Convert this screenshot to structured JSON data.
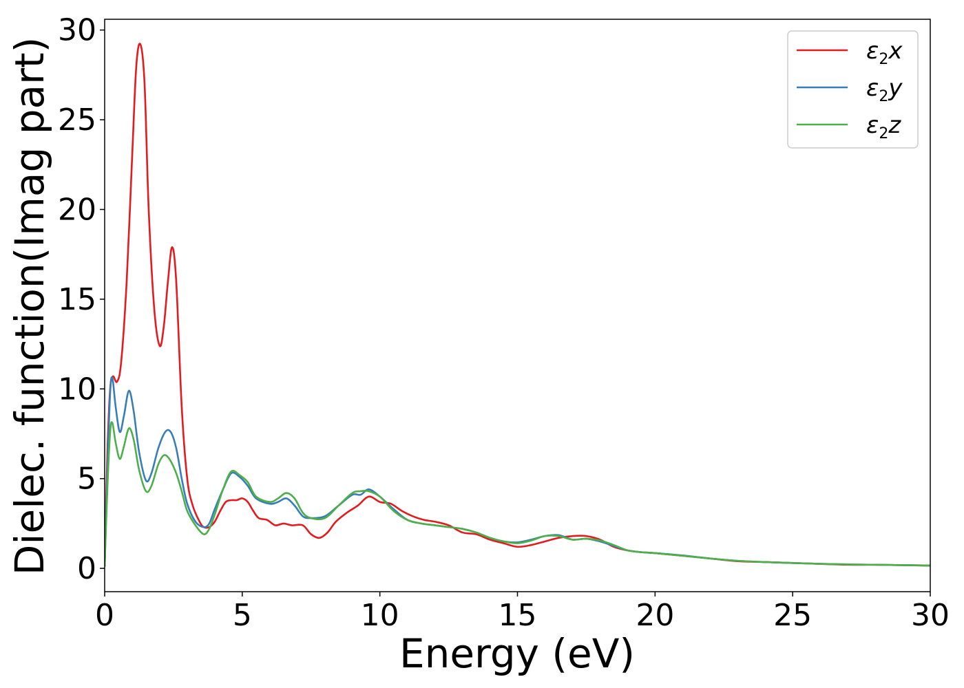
{
  "chart_data": {
    "type": "line",
    "xlabel": "Energy (eV)",
    "ylabel": "Dielec. function(Imag part)",
    "xlim": [
      0,
      30
    ],
    "ylim": [
      -1.3,
      30.6
    ],
    "xticks": [
      0,
      5,
      10,
      15,
      20,
      25,
      30
    ],
    "yticks": [
      0,
      5,
      10,
      15,
      20,
      25,
      30
    ],
    "grid": false,
    "legend_position": "top-right",
    "series": [
      {
        "name": "ε₂x",
        "legend_base": "ε",
        "legend_sub": "2",
        "legend_var": "x",
        "color": "#e41a1c",
        "points": [
          [
            0,
            0.1
          ],
          [
            0.1,
            6.5
          ],
          [
            0.2,
            10.0
          ],
          [
            0.3,
            10.7
          ],
          [
            0.45,
            10.4
          ],
          [
            0.6,
            11.5
          ],
          [
            0.8,
            16
          ],
          [
            1.0,
            23
          ],
          [
            1.15,
            28
          ],
          [
            1.3,
            29.2
          ],
          [
            1.45,
            27
          ],
          [
            1.6,
            20
          ],
          [
            1.8,
            14.5
          ],
          [
            2.0,
            12.4
          ],
          [
            2.15,
            13.5
          ],
          [
            2.3,
            16
          ],
          [
            2.45,
            17.9
          ],
          [
            2.6,
            16
          ],
          [
            2.8,
            9
          ],
          [
            3.0,
            5
          ],
          [
            3.2,
            3.5
          ],
          [
            3.45,
            2.6
          ],
          [
            3.6,
            2.3
          ],
          [
            3.8,
            2.3
          ],
          [
            4.0,
            2.6
          ],
          [
            4.2,
            3.2
          ],
          [
            4.4,
            3.7
          ],
          [
            4.6,
            3.8
          ],
          [
            4.8,
            3.8
          ],
          [
            5.0,
            3.9
          ],
          [
            5.2,
            3.7
          ],
          [
            5.4,
            3.2
          ],
          [
            5.6,
            2.8
          ],
          [
            5.9,
            2.7
          ],
          [
            6.2,
            2.4
          ],
          [
            6.5,
            2.5
          ],
          [
            6.8,
            2.4
          ],
          [
            7.2,
            2.4
          ],
          [
            7.5,
            1.9
          ],
          [
            7.8,
            1.7
          ],
          [
            8.1,
            2.0
          ],
          [
            8.4,
            2.6
          ],
          [
            8.8,
            3.1
          ],
          [
            9.2,
            3.5
          ],
          [
            9.6,
            4.0
          ],
          [
            10.0,
            3.7
          ],
          [
            10.4,
            3.6
          ],
          [
            10.8,
            3.2
          ],
          [
            11.2,
            2.9
          ],
          [
            11.6,
            2.7
          ],
          [
            12.0,
            2.6
          ],
          [
            12.5,
            2.4
          ],
          [
            13.0,
            2.0
          ],
          [
            13.5,
            1.9
          ],
          [
            14.0,
            1.6
          ],
          [
            14.5,
            1.4
          ],
          [
            15.0,
            1.2
          ],
          [
            15.5,
            1.3
          ],
          [
            16.0,
            1.5
          ],
          [
            16.5,
            1.7
          ],
          [
            17.0,
            1.8
          ],
          [
            17.5,
            1.8
          ],
          [
            18.0,
            1.6
          ],
          [
            18.5,
            1.2
          ],
          [
            19.0,
            1.0
          ],
          [
            19.5,
            0.9
          ],
          [
            20.0,
            0.85
          ],
          [
            21,
            0.7
          ],
          [
            22,
            0.55
          ],
          [
            23,
            0.4
          ],
          [
            24,
            0.35
          ],
          [
            25,
            0.3
          ],
          [
            26,
            0.25
          ],
          [
            27,
            0.2
          ],
          [
            28,
            0.2
          ],
          [
            29,
            0.18
          ],
          [
            30,
            0.15
          ]
        ]
      },
      {
        "name": "ε₂y",
        "legend_base": "ε",
        "legend_sub": "2",
        "legend_var": "y",
        "color": "#377eb8",
        "points": [
          [
            0,
            0.1
          ],
          [
            0.1,
            5.5
          ],
          [
            0.2,
            9.8
          ],
          [
            0.28,
            10.6
          ],
          [
            0.4,
            9.0
          ],
          [
            0.55,
            7.6
          ],
          [
            0.7,
            8.5
          ],
          [
            0.88,
            9.9
          ],
          [
            1.05,
            8.8
          ],
          [
            1.25,
            6.5
          ],
          [
            1.5,
            4.9
          ],
          [
            1.7,
            5.3
          ],
          [
            1.95,
            6.7
          ],
          [
            2.2,
            7.6
          ],
          [
            2.4,
            7.6
          ],
          [
            2.6,
            6.7
          ],
          [
            2.8,
            5.0
          ],
          [
            3.0,
            3.6
          ],
          [
            3.3,
            2.6
          ],
          [
            3.6,
            2.3
          ],
          [
            3.8,
            2.5
          ],
          [
            4.0,
            3.3
          ],
          [
            4.3,
            4.4
          ],
          [
            4.6,
            5.3
          ],
          [
            4.9,
            5.1
          ],
          [
            5.2,
            4.6
          ],
          [
            5.5,
            3.9
          ],
          [
            6.0,
            3.6
          ],
          [
            6.3,
            3.7
          ],
          [
            6.6,
            3.9
          ],
          [
            6.9,
            3.5
          ],
          [
            7.2,
            2.9
          ],
          [
            7.5,
            2.8
          ],
          [
            8.0,
            2.9
          ],
          [
            8.5,
            3.5
          ],
          [
            9.0,
            4.1
          ],
          [
            9.3,
            4.1
          ],
          [
            9.6,
            4.4
          ],
          [
            10.0,
            4.0
          ],
          [
            10.5,
            3.3
          ],
          [
            11.0,
            2.7
          ],
          [
            11.5,
            2.5
          ],
          [
            12.0,
            2.4
          ],
          [
            12.5,
            2.3
          ],
          [
            13.0,
            2.2
          ],
          [
            13.5,
            2.0
          ],
          [
            14.0,
            1.7
          ],
          [
            14.5,
            1.5
          ],
          [
            15.0,
            1.45
          ],
          [
            15.5,
            1.6
          ],
          [
            16.0,
            1.8
          ],
          [
            16.5,
            1.85
          ],
          [
            17.0,
            1.6
          ],
          [
            17.5,
            1.65
          ],
          [
            18.0,
            1.5
          ],
          [
            18.5,
            1.25
          ],
          [
            19.0,
            1.0
          ],
          [
            19.5,
            0.9
          ],
          [
            20.0,
            0.85
          ],
          [
            21,
            0.72
          ],
          [
            22,
            0.55
          ],
          [
            23,
            0.42
          ],
          [
            24,
            0.35
          ],
          [
            25,
            0.3
          ],
          [
            26,
            0.25
          ],
          [
            27,
            0.22
          ],
          [
            28,
            0.2
          ],
          [
            29,
            0.18
          ],
          [
            30,
            0.16
          ]
        ]
      },
      {
        "name": "ε₂z",
        "legend_base": "ε",
        "legend_sub": "2",
        "legend_var": "z",
        "color": "#4daf4a",
        "points": [
          [
            0,
            0.1
          ],
          [
            0.1,
            4.5
          ],
          [
            0.2,
            7.6
          ],
          [
            0.28,
            8.1
          ],
          [
            0.4,
            7.0
          ],
          [
            0.55,
            6.1
          ],
          [
            0.7,
            6.8
          ],
          [
            0.88,
            7.8
          ],
          [
            1.05,
            7.2
          ],
          [
            1.25,
            5.5
          ],
          [
            1.5,
            4.3
          ],
          [
            1.7,
            4.6
          ],
          [
            1.95,
            5.8
          ],
          [
            2.15,
            6.3
          ],
          [
            2.35,
            6.1
          ],
          [
            2.6,
            5.3
          ],
          [
            2.8,
            4.3
          ],
          [
            3.0,
            3.2
          ],
          [
            3.3,
            2.4
          ],
          [
            3.6,
            1.9
          ],
          [
            3.8,
            2.2
          ],
          [
            4.0,
            3.0
          ],
          [
            4.3,
            4.4
          ],
          [
            4.6,
            5.4
          ],
          [
            4.9,
            5.2
          ],
          [
            5.2,
            4.8
          ],
          [
            5.5,
            4.0
          ],
          [
            6.0,
            3.7
          ],
          [
            6.3,
            3.9
          ],
          [
            6.6,
            4.2
          ],
          [
            6.9,
            3.9
          ],
          [
            7.2,
            3.1
          ],
          [
            7.5,
            2.8
          ],
          [
            8.0,
            2.8
          ],
          [
            8.5,
            3.5
          ],
          [
            9.0,
            4.2
          ],
          [
            9.3,
            4.3
          ],
          [
            9.6,
            4.3
          ],
          [
            10.0,
            4.0
          ],
          [
            10.5,
            3.2
          ],
          [
            11.0,
            2.7
          ],
          [
            11.5,
            2.5
          ],
          [
            12.0,
            2.4
          ],
          [
            12.5,
            2.3
          ],
          [
            13.0,
            2.2
          ],
          [
            13.5,
            2.0
          ],
          [
            14.0,
            1.7
          ],
          [
            14.5,
            1.5
          ],
          [
            15.0,
            1.4
          ],
          [
            15.5,
            1.55
          ],
          [
            16.0,
            1.8
          ],
          [
            16.5,
            1.8
          ],
          [
            17.0,
            1.6
          ],
          [
            17.5,
            1.65
          ],
          [
            18.0,
            1.55
          ],
          [
            18.5,
            1.3
          ],
          [
            19.0,
            1.0
          ],
          [
            19.5,
            0.9
          ],
          [
            20.0,
            0.85
          ],
          [
            21,
            0.7
          ],
          [
            22,
            0.55
          ],
          [
            23,
            0.42
          ],
          [
            24,
            0.35
          ],
          [
            25,
            0.3
          ],
          [
            26,
            0.25
          ],
          [
            27,
            0.22
          ],
          [
            28,
            0.2
          ],
          [
            29,
            0.18
          ],
          [
            30,
            0.16
          ]
        ]
      }
    ]
  }
}
